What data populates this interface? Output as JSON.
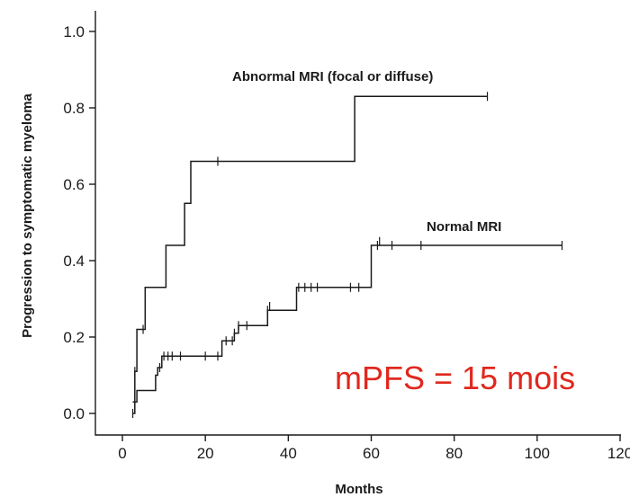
{
  "chart_data": {
    "type": "line",
    "xlabel": "Months",
    "ylabel": "Progression to symptomatic myeloma",
    "xlim": [
      -5,
      120
    ],
    "ylim": [
      -0.05,
      1.05
    ],
    "x_ticks": [
      0,
      20,
      40,
      60,
      80,
      100,
      120
    ],
    "x_tick_labels": [
      "0",
      "20",
      "40",
      "60",
      "80",
      "100",
      "120"
    ],
    "y_ticks": [
      0.0,
      0.2,
      0.4,
      0.6,
      0.8,
      1.0
    ],
    "y_tick_labels": [
      "0.0",
      "0.2",
      "0.4",
      "0.6",
      "0.8",
      "1.0"
    ],
    "grid": false,
    "series": [
      {
        "name": "Abnormal MRI (focal or diffuse)",
        "color": "#1a1a1a",
        "steps": [
          [
            2.5,
            0.03
          ],
          [
            3,
            0.11
          ],
          [
            3.5,
            0.22
          ],
          [
            5.5,
            0.33
          ],
          [
            10.5,
            0.44
          ],
          [
            15,
            0.55
          ],
          [
            16.5,
            0.66
          ],
          [
            56,
            0.83
          ],
          [
            88,
            0.83
          ]
        ],
        "censored": [
          [
            3,
            0.11
          ],
          [
            5,
            0.22
          ],
          [
            23,
            0.66
          ],
          [
            88,
            0.83
          ]
        ]
      },
      {
        "name": "Normal MRI",
        "color": "#1a1a1a",
        "steps": [
          [
            2.5,
            0.0
          ],
          [
            3,
            0.03
          ],
          [
            3.5,
            0.06
          ],
          [
            8,
            0.1
          ],
          [
            8.5,
            0.12
          ],
          [
            9.5,
            0.15
          ],
          [
            24,
            0.19
          ],
          [
            27,
            0.21
          ],
          [
            28,
            0.23
          ],
          [
            35,
            0.27
          ],
          [
            42,
            0.33
          ],
          [
            60,
            0.44
          ],
          [
            106,
            0.44
          ]
        ],
        "censored": [
          [
            2.5,
            0.0
          ],
          [
            9,
            0.12
          ],
          [
            10,
            0.15
          ],
          [
            11,
            0.15
          ],
          [
            12,
            0.15
          ],
          [
            14,
            0.15
          ],
          [
            20,
            0.15
          ],
          [
            23,
            0.15
          ],
          [
            25,
            0.19
          ],
          [
            26.5,
            0.19
          ],
          [
            27,
            0.21
          ],
          [
            28,
            0.23
          ],
          [
            30,
            0.23
          ],
          [
            35,
            0.27
          ],
          [
            35.5,
            0.28
          ],
          [
            42.5,
            0.33
          ],
          [
            44,
            0.33
          ],
          [
            45.5,
            0.33
          ],
          [
            47,
            0.33
          ],
          [
            55,
            0.33
          ],
          [
            57,
            0.33
          ],
          [
            61.5,
            0.44
          ],
          [
            62,
            0.45
          ],
          [
            65,
            0.44
          ],
          [
            72,
            0.44
          ],
          [
            106,
            0.44
          ]
        ]
      }
    ],
    "annotation": {
      "text": "mPFS = 15 mois",
      "color": "#e0281e"
    }
  }
}
